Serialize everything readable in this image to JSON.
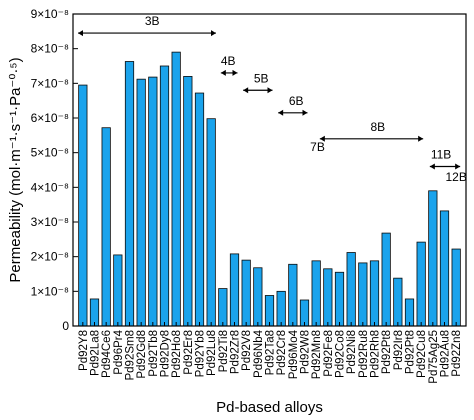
{
  "chart_data": {
    "type": "bar",
    "xlabel": "Pd-based alloys",
    "ylabel": "Permeability (mol·m⁻¹·s⁻¹·Pa⁻⁰·⁵)",
    "ylim": [
      0,
      9e-08
    ],
    "yticks": [
      {
        "value": 0,
        "label": "0"
      },
      {
        "value": 1e-08,
        "label": "1×10⁻⁸"
      },
      {
        "value": 2e-08,
        "label": "2×10⁻⁸"
      },
      {
        "value": 3e-08,
        "label": "3×10⁻⁸"
      },
      {
        "value": 4e-08,
        "label": "4×10⁻⁸"
      },
      {
        "value": 5e-08,
        "label": "5×10⁻⁸"
      },
      {
        "value": 6e-08,
        "label": "6×10⁻⁸"
      },
      {
        "value": 7e-08,
        "label": "7×10⁻⁸"
      },
      {
        "value": 8e-08,
        "label": "8×10⁻⁸"
      },
      {
        "value": 9e-08,
        "label": "9×10⁻⁸"
      }
    ],
    "categories": [
      "Pd92Y8",
      "Pd92La8",
      "Pd94Ce6",
      "Pd96Pr4",
      "Pd92Sm8",
      "Pd92Gd8",
      "Pd92Tb8",
      "Pd92Dy8",
      "Pd92Ho8",
      "Pd92Er8",
      "Pd92Yb8",
      "Pd92Lu8",
      "Pd92Ti8",
      "Pd92Zr8",
      "Pd92V8",
      "Pd96Nb4",
      "Pd92Ta8",
      "Pd92Cr8",
      "Pd96Mo4",
      "Pd92W8",
      "Pd92Mn8",
      "Pd92Fe8",
      "Pd92Co8",
      "Pd92Ni8",
      "Pd92Ru8",
      "Pd92Rh8",
      "Pd92Pt8",
      "Pd92Ir8",
      "Pd92Pt8",
      "Pd92Cu8",
      "Pd75Ag25",
      "Pd92Au8",
      "Pd92Zn8"
    ],
    "values": [
      6.95e-08,
      7.8e-09,
      5.72e-08,
      2.05e-08,
      7.63e-08,
      7.12e-08,
      7.18e-08,
      7.5e-08,
      7.9e-08,
      7.2e-08,
      6.72e-08,
      5.98e-08,
      1.08e-08,
      2.08e-08,
      1.9e-08,
      1.68e-08,
      8.8e-09,
      1e-08,
      1.78e-08,
      7.5e-09,
      1.88e-08,
      1.65e-08,
      1.55e-08,
      2.12e-08,
      1.82e-08,
      1.88e-08,
      2.68e-08,
      1.38e-08,
      7.8e-09,
      2.42e-08,
      3.9e-08,
      3.32e-08,
      2.22e-08
    ],
    "groups": [
      {
        "label": "3B",
        "from": 0,
        "to": 11,
        "y": 8.45e-08
      },
      {
        "label": "4B",
        "from": 12,
        "to": 13,
        "y": 7.3e-08
      },
      {
        "label": "5B",
        "from": 14,
        "to": 16,
        "y": 6.8e-08
      },
      {
        "label": "6B",
        "from": 17,
        "to": 19,
        "y": 6.15e-08
      },
      {
        "label": "7B",
        "from": 20,
        "to": 21,
        "y": 5.4e-08
      },
      {
        "label": "8B",
        "from": 21,
        "to": 29,
        "y": 5.4e-08
      },
      {
        "label": "11B",
        "from": 30,
        "to": 32,
        "y": 4.6e-08
      },
      {
        "label": "12B",
        "from": 32,
        "to": 32,
        "y": null
      }
    ]
  }
}
